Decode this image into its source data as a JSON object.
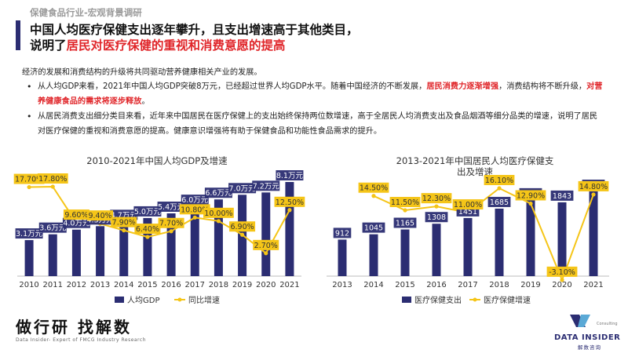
{
  "header": {
    "section_tag": "保健食品行业-宏观背景调研",
    "title_line1": "中国人均医疗保健支出逐年攀升，且支出增速高于其他类目，",
    "title_line2_prefix": "说明了",
    "title_line2_highlight": "居民对医疗保健的重视和消费意愿的提高"
  },
  "body": {
    "intro": "经济的发展和消费结构的升级将共同驱动营养健康相关产业的发展。",
    "bullet1_a": "从人均GDP来看，2021年中国人均GDP突破8万元，已经超过世界人均GDP水平。随着中国经济的不断发展，",
    "bullet1_hl1": "居民消费力逐渐增强",
    "bullet1_b": "，消费结构将不断升级，",
    "bullet1_hl2": "对营养健康食品的需求将逐步释放",
    "bullet1_c": "。",
    "bullet2": "从居民消费支出细分类目来看，近年来中国居民在医疗保健上的支出始终保持两位数增速，高于全居民人均消费支出及食品烟酒等细分品类的增速，说明了居民对医疗保健的重视和消费意愿的提高。健康意识增强将有助于保健食品和功能性食品需求的提升。"
  },
  "chart_data": [
    {
      "type": "bar",
      "title": "2010-2021年中国人均GDP及增速",
      "categories": [
        "2010",
        "2011",
        "2012",
        "2013",
        "2014",
        "2015",
        "2016",
        "2017",
        "2018",
        "2019",
        "2020",
        "2021"
      ],
      "series": [
        {
          "name": "人均GDP",
          "kind": "bar",
          "values": [
            3.1,
            3.6,
            4.0,
            4.3,
            4.7,
            5.0,
            5.4,
            6.0,
            6.6,
            7.0,
            7.2,
            8.1
          ],
          "labels": [
            "3.1万元",
            "3.6万元",
            "4.0万元",
            "4.3万元",
            "4.7万元",
            "5.0万元",
            "5.4万元",
            "6.0万元",
            "6.6万元",
            "7.0万元",
            "7.2万元",
            "8.1万元"
          ]
        },
        {
          "name": "同比增速",
          "kind": "line",
          "values": [
            17.7,
            17.8,
            9.6,
            9.4,
            7.9,
            6.4,
            7.7,
            10.8,
            10.0,
            6.9,
            2.7,
            12.5
          ],
          "labels": [
            "17.70%",
            "17.80%",
            "9.60%",
            "9.40%",
            "7.90%",
            "6.40%",
            "7.70%",
            "10.80%",
            "10.00%",
            "6.90%",
            "2.70%",
            "12.50%"
          ]
        }
      ],
      "bar_color": "#2b2d72",
      "line_color": "#f5c518"
    },
    {
      "type": "bar",
      "title_line1": "2013-2021年中国居民人均医疗保健支",
      "title_line2": "出及增速",
      "categories": [
        "2013",
        "2014",
        "2015",
        "2016",
        "2017",
        "2018",
        "2019",
        "2020",
        "2021"
      ],
      "series": [
        {
          "name": "医疗保健支出",
          "kind": "bar",
          "values": [
            912,
            1045,
            1165,
            1308,
            1451,
            1685,
            1902,
            1843,
            2115
          ],
          "labels": [
            "912",
            "1045",
            "1165",
            "1308",
            "1451",
            "1685",
            "1902",
            "1843",
            "2115"
          ]
        },
        {
          "name": "医疗保健增速",
          "kind": "line",
          "values": [
            null,
            14.5,
            11.5,
            12.3,
            11.0,
            16.1,
            12.9,
            -3.1,
            14.8
          ],
          "labels": [
            "",
            "14.50%",
            "11.50%",
            "12.30%",
            "11.00%",
            "16.10%",
            "12.90%",
            "-3.10%",
            "14.80%"
          ]
        }
      ],
      "bar_color": "#2b2d72",
      "line_color": "#f5c518"
    }
  ],
  "footer": {
    "brand_cn": "做行研 找解数",
    "brand_en": "Data Insider- Expert of FMCG Industry Research",
    "logo_en": "DATA INSIDER",
    "logo_cn": "解数咨询",
    "logo_small": "Consulting"
  }
}
